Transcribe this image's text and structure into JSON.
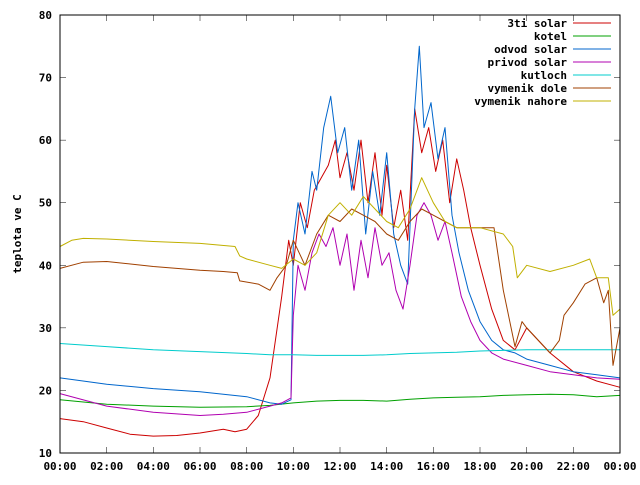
{
  "chart_data": {
    "type": "line",
    "title": "",
    "xlabel": "",
    "ylabel": "teplota ve C",
    "xlim": [
      0,
      24
    ],
    "ylim": [
      10,
      80
    ],
    "x_ticks": [
      {
        "value": 0,
        "label": "00:00"
      },
      {
        "value": 2,
        "label": "02:00"
      },
      {
        "value": 4,
        "label": "04:00"
      },
      {
        "value": 6,
        "label": "06:00"
      },
      {
        "value": 8,
        "label": "08:00"
      },
      {
        "value": 10,
        "label": "10:00"
      },
      {
        "value": 12,
        "label": "12:00"
      },
      {
        "value": 14,
        "label": "14:00"
      },
      {
        "value": 16,
        "label": "16:00"
      },
      {
        "value": 18,
        "label": "18:00"
      },
      {
        "value": 20,
        "label": "20:00"
      },
      {
        "value": 22,
        "label": "22:00"
      },
      {
        "value": 24,
        "label": "00:00"
      }
    ],
    "y_ticks": [
      {
        "value": 10,
        "label": "10"
      },
      {
        "value": 20,
        "label": "20"
      },
      {
        "value": 30,
        "label": "30"
      },
      {
        "value": 40,
        "label": "40"
      },
      {
        "value": 50,
        "label": "50"
      },
      {
        "value": 60,
        "label": "60"
      },
      {
        "value": 70,
        "label": "70"
      },
      {
        "value": 80,
        "label": "80"
      }
    ],
    "grid": false,
    "legend_position": "top-right",
    "series": [
      {
        "name": "3ti solar",
        "color": "#cc0000",
        "points": [
          [
            0,
            15.5
          ],
          [
            1,
            15
          ],
          [
            2,
            14
          ],
          [
            3,
            13
          ],
          [
            4,
            12.7
          ],
          [
            5,
            12.8
          ],
          [
            6,
            13.2
          ],
          [
            7,
            13.8
          ],
          [
            7.5,
            13.4
          ],
          [
            8,
            13.8
          ],
          [
            8.5,
            16
          ],
          [
            9,
            22
          ],
          [
            9.5,
            35
          ],
          [
            9.8,
            44
          ],
          [
            10,
            40
          ],
          [
            10.3,
            50
          ],
          [
            10.6,
            46
          ],
          [
            10.9,
            52
          ],
          [
            11.2,
            54
          ],
          [
            11.5,
            56
          ],
          [
            11.8,
            60
          ],
          [
            12,
            54
          ],
          [
            12.3,
            58
          ],
          [
            12.6,
            52
          ],
          [
            12.9,
            60
          ],
          [
            13.2,
            50
          ],
          [
            13.5,
            58
          ],
          [
            13.8,
            48
          ],
          [
            14,
            56
          ],
          [
            14.3,
            46
          ],
          [
            14.6,
            52
          ],
          [
            14.9,
            44
          ],
          [
            15.2,
            65
          ],
          [
            15.5,
            58
          ],
          [
            15.8,
            62
          ],
          [
            16.1,
            55
          ],
          [
            16.4,
            60
          ],
          [
            16.7,
            50
          ],
          [
            17,
            57
          ],
          [
            17.3,
            52
          ],
          [
            17.6,
            46
          ],
          [
            18,
            40
          ],
          [
            18.5,
            33
          ],
          [
            19,
            28
          ],
          [
            19.5,
            26.5
          ],
          [
            20,
            30
          ],
          [
            20.5,
            28
          ],
          [
            21,
            26
          ],
          [
            22,
            23
          ],
          [
            23,
            21.5
          ],
          [
            24,
            20.5
          ]
        ]
      },
      {
        "name": "kotel",
        "color": "#00a000",
        "points": [
          [
            0,
            18.5
          ],
          [
            2,
            17.8
          ],
          [
            4,
            17.5
          ],
          [
            6,
            17.3
          ],
          [
            8,
            17.4
          ],
          [
            9,
            17.6
          ],
          [
            10,
            18
          ],
          [
            11,
            18.3
          ],
          [
            12,
            18.4
          ],
          [
            13,
            18.4
          ],
          [
            14,
            18.3
          ],
          [
            15,
            18.6
          ],
          [
            16,
            18.8
          ],
          [
            17,
            18.9
          ],
          [
            18,
            19
          ],
          [
            19,
            19.2
          ],
          [
            20,
            19.3
          ],
          [
            21,
            19.4
          ],
          [
            22,
            19.3
          ],
          [
            23,
            19
          ],
          [
            24,
            19.2
          ]
        ]
      },
      {
        "name": "odvod solar",
        "color": "#0066cc",
        "points": [
          [
            0,
            22
          ],
          [
            2,
            21
          ],
          [
            4,
            20.3
          ],
          [
            6,
            19.8
          ],
          [
            8,
            19
          ],
          [
            9,
            18
          ],
          [
            9.5,
            17.8
          ],
          [
            9.9,
            18.5
          ],
          [
            10,
            44
          ],
          [
            10.2,
            50
          ],
          [
            10.5,
            45
          ],
          [
            10.8,
            55
          ],
          [
            11,
            52
          ],
          [
            11.3,
            62
          ],
          [
            11.6,
            67
          ],
          [
            11.9,
            58
          ],
          [
            12.2,
            62
          ],
          [
            12.5,
            52
          ],
          [
            12.8,
            60
          ],
          [
            13.1,
            45
          ],
          [
            13.4,
            55
          ],
          [
            13.7,
            48
          ],
          [
            14,
            58
          ],
          [
            14.3,
            45
          ],
          [
            14.6,
            40
          ],
          [
            14.9,
            37
          ],
          [
            15.2,
            65
          ],
          [
            15.4,
            75
          ],
          [
            15.6,
            62
          ],
          [
            15.9,
            66
          ],
          [
            16.2,
            57
          ],
          [
            16.5,
            62
          ],
          [
            16.8,
            48
          ],
          [
            17.1,
            42
          ],
          [
            17.5,
            36
          ],
          [
            18,
            31
          ],
          [
            18.5,
            28
          ],
          [
            19,
            26.5
          ],
          [
            19.5,
            26
          ],
          [
            20,
            25
          ],
          [
            21,
            24
          ],
          [
            22,
            23
          ],
          [
            23,
            22.5
          ],
          [
            24,
            22
          ]
        ]
      },
      {
        "name": "privod solar",
        "color": "#b000b0",
        "points": [
          [
            0,
            19.5
          ],
          [
            2,
            17.5
          ],
          [
            4,
            16.5
          ],
          [
            6,
            16
          ],
          [
            7,
            16.2
          ],
          [
            8,
            16.5
          ],
          [
            9,
            17.5
          ],
          [
            9.5,
            18
          ],
          [
            9.9,
            18.8
          ],
          [
            10,
            32
          ],
          [
            10.2,
            40
          ],
          [
            10.5,
            36
          ],
          [
            10.8,
            42
          ],
          [
            11.1,
            45
          ],
          [
            11.4,
            43
          ],
          [
            11.7,
            46
          ],
          [
            12,
            40
          ],
          [
            12.3,
            45
          ],
          [
            12.6,
            36
          ],
          [
            12.9,
            44
          ],
          [
            13.2,
            38
          ],
          [
            13.5,
            46
          ],
          [
            13.8,
            40
          ],
          [
            14.1,
            42
          ],
          [
            14.4,
            36
          ],
          [
            14.7,
            33
          ],
          [
            15,
            40
          ],
          [
            15.3,
            48
          ],
          [
            15.6,
            50
          ],
          [
            15.9,
            48
          ],
          [
            16.2,
            44
          ],
          [
            16.5,
            47
          ],
          [
            16.8,
            42
          ],
          [
            17.2,
            35
          ],
          [
            17.6,
            31
          ],
          [
            18,
            28
          ],
          [
            18.5,
            26
          ],
          [
            19,
            25
          ],
          [
            20,
            24
          ],
          [
            21,
            23
          ],
          [
            22,
            22.5
          ],
          [
            23,
            22
          ],
          [
            24,
            21.8
          ]
        ]
      },
      {
        "name": "kutloch",
        "color": "#00cccc",
        "points": [
          [
            0,
            27.5
          ],
          [
            2,
            27
          ],
          [
            4,
            26.5
          ],
          [
            6,
            26.2
          ],
          [
            8,
            25.9
          ],
          [
            9,
            25.7
          ],
          [
            10,
            25.7
          ],
          [
            11,
            25.6
          ],
          [
            12,
            25.6
          ],
          [
            13,
            25.6
          ],
          [
            14,
            25.7
          ],
          [
            15,
            25.9
          ],
          [
            16,
            26
          ],
          [
            17,
            26.1
          ],
          [
            18,
            26.3
          ],
          [
            19,
            26.4
          ],
          [
            20,
            26.5
          ],
          [
            21,
            26.5
          ],
          [
            22,
            26.5
          ],
          [
            23,
            26.5
          ],
          [
            24,
            26.5
          ]
        ]
      },
      {
        "name": "vymenik dole",
        "color": "#a04000",
        "points": [
          [
            0,
            39.5
          ],
          [
            1,
            40.5
          ],
          [
            2,
            40.6
          ],
          [
            4,
            39.8
          ],
          [
            6,
            39.2
          ],
          [
            7,
            39
          ],
          [
            7.6,
            38.8
          ],
          [
            7.7,
            37.5
          ],
          [
            8.5,
            37
          ],
          [
            9,
            36
          ],
          [
            9.3,
            38
          ],
          [
            9.7,
            40
          ],
          [
            10,
            44
          ],
          [
            10.5,
            40
          ],
          [
            11,
            45
          ],
          [
            11.5,
            48
          ],
          [
            12,
            47
          ],
          [
            12.5,
            49
          ],
          [
            13,
            48
          ],
          [
            13.5,
            47
          ],
          [
            14,
            45
          ],
          [
            14.5,
            44
          ],
          [
            15,
            47
          ],
          [
            15.5,
            49
          ],
          [
            16,
            48
          ],
          [
            16.5,
            47
          ],
          [
            17,
            46
          ],
          [
            18,
            46
          ],
          [
            18.6,
            46
          ],
          [
            19,
            36
          ],
          [
            19.5,
            27
          ],
          [
            19.8,
            31
          ],
          [
            20,
            30
          ],
          [
            21,
            26
          ],
          [
            21.4,
            28
          ],
          [
            21.6,
            32
          ],
          [
            22,
            34
          ],
          [
            22.5,
            37
          ],
          [
            23,
            38
          ],
          [
            23.3,
            34
          ],
          [
            23.5,
            36
          ],
          [
            23.7,
            24
          ],
          [
            24,
            30
          ]
        ]
      },
      {
        "name": "vymenik nahore",
        "color": "#c0b000",
        "points": [
          [
            0,
            43
          ],
          [
            0.5,
            44
          ],
          [
            1,
            44.3
          ],
          [
            2,
            44.2
          ],
          [
            4,
            43.8
          ],
          [
            6,
            43.5
          ],
          [
            7.5,
            43
          ],
          [
            7.7,
            41.5
          ],
          [
            8,
            41
          ],
          [
            9,
            40
          ],
          [
            9.5,
            39.5
          ],
          [
            10,
            41
          ],
          [
            10.5,
            40
          ],
          [
            11,
            42
          ],
          [
            11.5,
            48
          ],
          [
            12,
            50
          ],
          [
            12.5,
            48
          ],
          [
            13,
            51
          ],
          [
            13.5,
            49
          ],
          [
            14,
            47
          ],
          [
            14.5,
            46
          ],
          [
            15,
            49
          ],
          [
            15.5,
            54
          ],
          [
            16,
            50
          ],
          [
            16.5,
            47
          ],
          [
            17,
            46
          ],
          [
            18,
            46
          ],
          [
            19,
            45
          ],
          [
            19.4,
            43
          ],
          [
            19.6,
            38
          ],
          [
            20,
            40
          ],
          [
            21,
            39
          ],
          [
            22,
            40
          ],
          [
            22.7,
            41
          ],
          [
            23,
            38
          ],
          [
            23.5,
            38
          ],
          [
            23.7,
            32
          ],
          [
            24,
            33
          ]
        ]
      }
    ]
  }
}
